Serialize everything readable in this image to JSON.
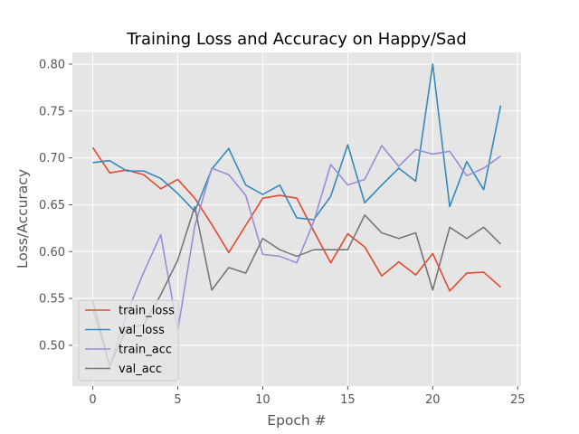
{
  "chart_data": {
    "type": "line",
    "title": "Training Loss and Accuracy on Happy/Sad",
    "xlabel": "Epoch #",
    "ylabel": "Loss/Accuracy",
    "xlim": [
      -1.2,
      25.2
    ],
    "ylim": [
      0.4565,
      0.8125
    ],
    "xticks": [
      0,
      5,
      10,
      15,
      20,
      25
    ],
    "yticks": [
      0.5,
      0.55,
      0.6,
      0.65,
      0.7,
      0.75,
      0.8
    ],
    "grid": true,
    "legend_position": "lower-left",
    "x": [
      0,
      1,
      2,
      3,
      4,
      5,
      6,
      7,
      8,
      9,
      10,
      11,
      12,
      13,
      14,
      15,
      16,
      17,
      18,
      19,
      20,
      21,
      22,
      23,
      24
    ],
    "series": [
      {
        "name": "train_loss",
        "color": "#E24A33",
        "values": [
          0.711,
          0.684,
          0.687,
          0.682,
          0.667,
          0.677,
          0.657,
          0.629,
          0.599,
          0.628,
          0.657,
          0.66,
          0.657,
          0.622,
          0.588,
          0.619,
          0.605,
          0.574,
          0.589,
          0.575,
          0.598,
          0.558,
          0.577,
          0.578,
          0.562
        ]
      },
      {
        "name": "val_loss",
        "color": "#348ABD",
        "values": [
          0.695,
          0.697,
          0.686,
          0.686,
          0.678,
          0.662,
          0.643,
          0.688,
          0.71,
          0.671,
          0.661,
          0.671,
          0.636,
          0.634,
          0.659,
          0.714,
          0.652,
          0.671,
          0.689,
          0.675,
          0.8,
          0.648,
          0.696,
          0.666,
          0.756
        ]
      },
      {
        "name": "train_acc",
        "color": "#988ED5",
        "values": [
          0.538,
          0.478,
          0.534,
          0.578,
          0.618,
          0.516,
          0.627,
          0.689,
          0.682,
          0.66,
          0.597,
          0.595,
          0.588,
          0.632,
          0.693,
          0.671,
          0.677,
          0.713,
          0.691,
          0.709,
          0.704,
          0.707,
          0.681,
          0.689,
          0.702
        ]
      },
      {
        "name": "val_acc",
        "color": "#777777",
        "values": [
          0.547,
          0.478,
          0.518,
          0.522,
          0.554,
          0.591,
          0.648,
          0.559,
          0.583,
          0.577,
          0.614,
          0.602,
          0.595,
          0.602,
          0.602,
          0.602,
          0.639,
          0.62,
          0.614,
          0.62,
          0.559,
          0.626,
          0.614,
          0.626,
          0.608
        ]
      }
    ]
  }
}
